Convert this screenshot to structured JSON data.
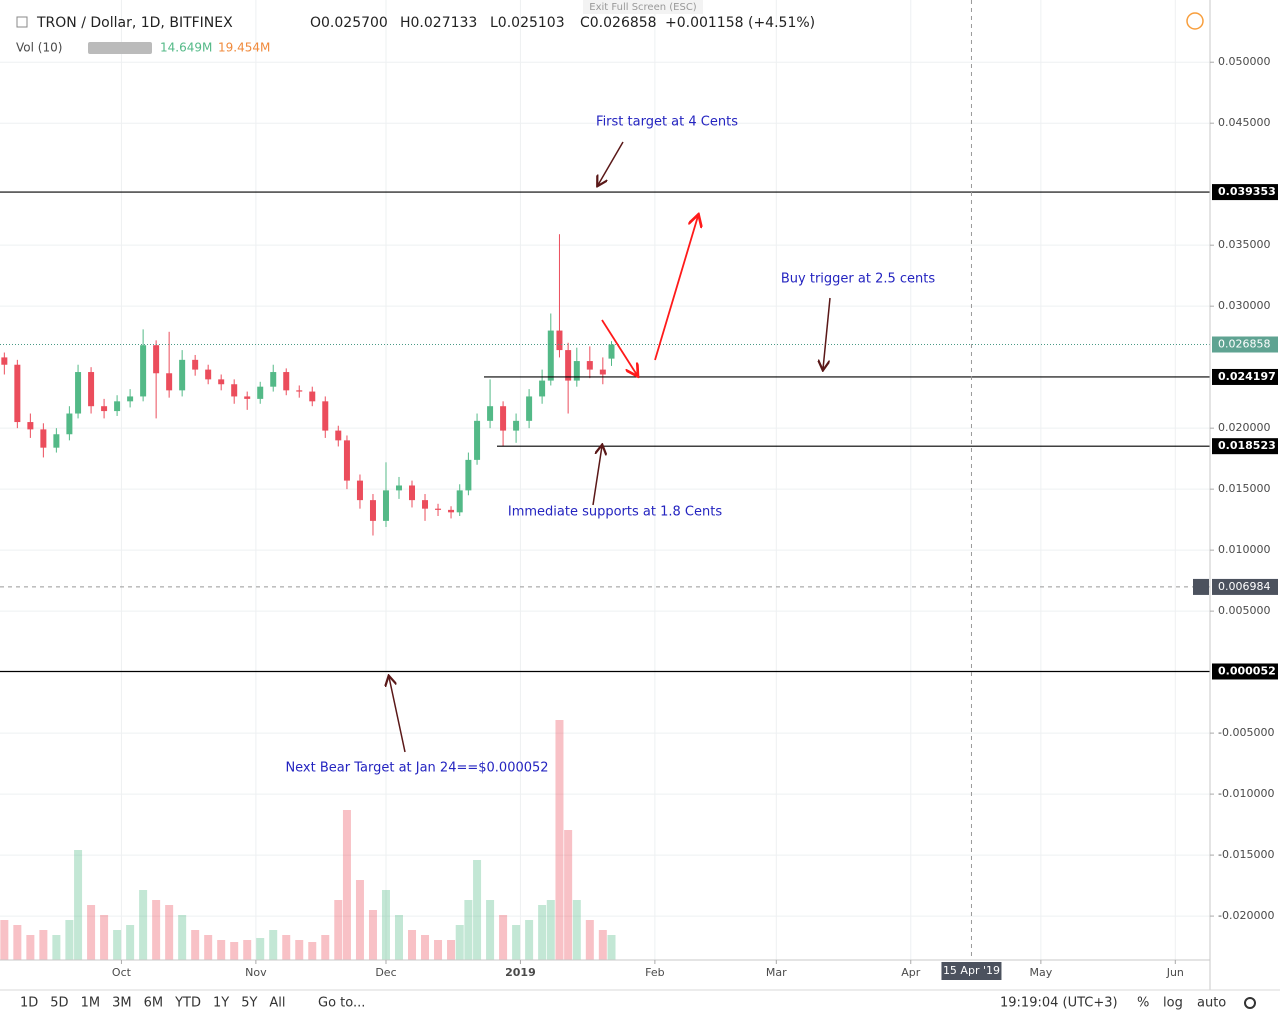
{
  "header": {
    "symbol": "TRON / Dollar, 1D, BITFINEX",
    "open": "O0.025700",
    "high": "H0.027133",
    "low": "L0.025103",
    "close": "C0.026858",
    "change": "+0.001158 (+4.51%)",
    "volume_label": "Vol (10)",
    "volume_value": "14.649M",
    "volume_ma": "19.454M",
    "fullscreen": "Exit Full Screen (ESC)"
  },
  "toolbar": {
    "ranges": [
      "1D",
      "5D",
      "1M",
      "3M",
      "6M",
      "YTD",
      "1Y",
      "5Y",
      "All"
    ],
    "goto": "Go to...",
    "clock": "19:19:04 (UTC+3)",
    "percent": "%",
    "log": "log",
    "auto": "auto"
  },
  "chart_data": {
    "type": "candlestick",
    "x": [
      "2018-09-04",
      "2018-09-07",
      "2018-09-10",
      "2018-09-13",
      "2018-09-16",
      "2018-09-19",
      "2018-09-21",
      "2018-09-24",
      "2018-09-27",
      "2018-09-30",
      "2018-10-03",
      "2018-10-06",
      "2018-10-09",
      "2018-10-12",
      "2018-10-15",
      "2018-10-18",
      "2018-10-21",
      "2018-10-24",
      "2018-10-27",
      "2018-10-30",
      "2018-11-02",
      "2018-11-05",
      "2018-11-08",
      "2018-11-11",
      "2018-11-14",
      "2018-11-17",
      "2018-11-20",
      "2018-11-22",
      "2018-11-25",
      "2018-11-28",
      "2018-12-01",
      "2018-12-04",
      "2018-12-07",
      "2018-12-10",
      "2018-12-13",
      "2018-12-16",
      "2018-12-18",
      "2018-12-20",
      "2018-12-22",
      "2018-12-25",
      "2018-12-28",
      "2018-12-31",
      "2019-01-03",
      "2019-01-06",
      "2019-01-08",
      "2019-01-10",
      "2019-01-12",
      "2019-01-14",
      "2019-01-17",
      "2019-01-20",
      "2019-01-22"
    ],
    "open": [
      0.0258,
      0.0252,
      0.0205,
      0.0199,
      0.0184,
      0.0195,
      0.0212,
      0.0246,
      0.0218,
      0.0214,
      0.0222,
      0.0226,
      0.0268,
      0.0245,
      0.0231,
      0.0256,
      0.0248,
      0.024,
      0.0236,
      0.0226,
      0.0224,
      0.0234,
      0.0246,
      0.0231,
      0.023,
      0.0222,
      0.0198,
      0.019,
      0.0157,
      0.0141,
      0.0124,
      0.0149,
      0.0153,
      0.0141,
      0.0134,
      0.0133,
      0.0131,
      0.0149,
      0.0174,
      0.0206,
      0.0218,
      0.0198,
      0.0206,
      0.0226,
      0.0239,
      0.028,
      0.0264,
      0.0239,
      0.0255,
      0.0248,
      0.0257
    ],
    "high": [
      0.0262,
      0.0256,
      0.0212,
      0.0204,
      0.02,
      0.0218,
      0.0252,
      0.025,
      0.0224,
      0.0227,
      0.0232,
      0.0281,
      0.0272,
      0.0279,
      0.0264,
      0.026,
      0.0252,
      0.0244,
      0.024,
      0.023,
      0.0238,
      0.0252,
      0.0249,
      0.0235,
      0.0234,
      0.0226,
      0.0202,
      0.0194,
      0.0162,
      0.0146,
      0.0172,
      0.016,
      0.0157,
      0.0146,
      0.0138,
      0.0136,
      0.0154,
      0.018,
      0.0212,
      0.024,
      0.0222,
      0.0212,
      0.0232,
      0.0248,
      0.0294,
      0.0359,
      0.027,
      0.0266,
      0.0267,
      0.0258,
      0.027133
    ],
    "low": [
      0.0244,
      0.02,
      0.0192,
      0.0176,
      0.018,
      0.019,
      0.0208,
      0.0212,
      0.0208,
      0.021,
      0.0217,
      0.0222,
      0.0208,
      0.0225,
      0.0226,
      0.0243,
      0.0236,
      0.0231,
      0.022,
      0.0215,
      0.022,
      0.023,
      0.0227,
      0.0225,
      0.0218,
      0.0192,
      0.0185,
      0.015,
      0.0134,
      0.0112,
      0.0119,
      0.0142,
      0.0135,
      0.0124,
      0.0128,
      0.0126,
      0.0128,
      0.0145,
      0.017,
      0.02,
      0.0185,
      0.0188,
      0.02,
      0.022,
      0.0235,
      0.0258,
      0.0212,
      0.0234,
      0.0241,
      0.0236,
      0.025103
    ],
    "close": [
      0.0252,
      0.0205,
      0.0199,
      0.0184,
      0.0195,
      0.0212,
      0.0246,
      0.0218,
      0.0214,
      0.0222,
      0.0226,
      0.0268,
      0.0245,
      0.0231,
      0.0256,
      0.0248,
      0.024,
      0.0236,
      0.0226,
      0.0224,
      0.0234,
      0.0246,
      0.0231,
      0.023,
      0.0222,
      0.0198,
      0.019,
      0.0157,
      0.0141,
      0.0124,
      0.0149,
      0.0153,
      0.0141,
      0.0134,
      0.0133,
      0.0131,
      0.0149,
      0.0174,
      0.0206,
      0.0218,
      0.0198,
      0.0206,
      0.0226,
      0.0239,
      0.028,
      0.0264,
      0.0239,
      0.0255,
      0.0248,
      0.0244,
      0.026858
    ],
    "volume": [
      40,
      35,
      25,
      30,
      25,
      40,
      110,
      55,
      45,
      30,
      35,
      70,
      60,
      55,
      45,
      30,
      25,
      20,
      18,
      20,
      22,
      30,
      25,
      20,
      18,
      25,
      60,
      150,
      80,
      50,
      70,
      45,
      30,
      25,
      20,
      20,
      35,
      60,
      100,
      60,
      45,
      35,
      40,
      55,
      60,
      240,
      130,
      60,
      40,
      30,
      25
    ],
    "up_color": "#53b987",
    "down_color": "#eb4d5c",
    "xlim": [
      "2018-09-03",
      "2019-06-09"
    ],
    "xticks": [
      {
        "value": "2018-10-01",
        "label": "Oct"
      },
      {
        "value": "2018-11-01",
        "label": "Nov"
      },
      {
        "value": "2018-12-01",
        "label": "Dec"
      },
      {
        "value": "2019-01-01",
        "label": "2019"
      },
      {
        "value": "2019-02-01",
        "label": "Feb"
      },
      {
        "value": "2019-03-01",
        "label": "Mar"
      },
      {
        "value": "2019-04-01",
        "label": "Apr"
      },
      {
        "value": "2019-05-01",
        "label": "May"
      },
      {
        "value": "2019-06-01",
        "label": "Jun"
      }
    ],
    "ylim": [
      -0.0236,
      0.0551
    ],
    "yticks": [
      {
        "value": 0.05,
        "label": "0.050000"
      },
      {
        "value": 0.045,
        "label": "0.045000"
      },
      {
        "value": 0.035,
        "label": "0.035000"
      },
      {
        "value": 0.03,
        "label": "0.030000"
      },
      {
        "value": 0.02,
        "label": "0.020000"
      },
      {
        "value": 0.015,
        "label": "0.015000"
      },
      {
        "value": 0.01,
        "label": "0.010000"
      },
      {
        "value": 0.005,
        "label": "0.005000"
      },
      {
        "value": -0.005,
        "label": "-0.005000"
      },
      {
        "value": -0.01,
        "label": "-0.010000"
      },
      {
        "value": -0.015,
        "label": "-0.015000"
      },
      {
        "value": -0.02,
        "label": "-0.020000"
      }
    ],
    "y2lim": [
      0,
      300
    ],
    "grid": true,
    "levels": [
      0.039353,
      0.024197,
      0.018523,
      5.2e-05
    ],
    "last_price": 0.026858,
    "crosshair": {
      "y": 0.006984,
      "x": {
        "value": "2019-04-15",
        "label": "15 Apr '19"
      }
    },
    "annotations": [
      "First target at 4 Cents",
      "Buy trigger at 2.5 cents",
      "Immediate supports at 1.8 Cents",
      "Next Bear Target at Jan 24==$0.000052"
    ]
  }
}
